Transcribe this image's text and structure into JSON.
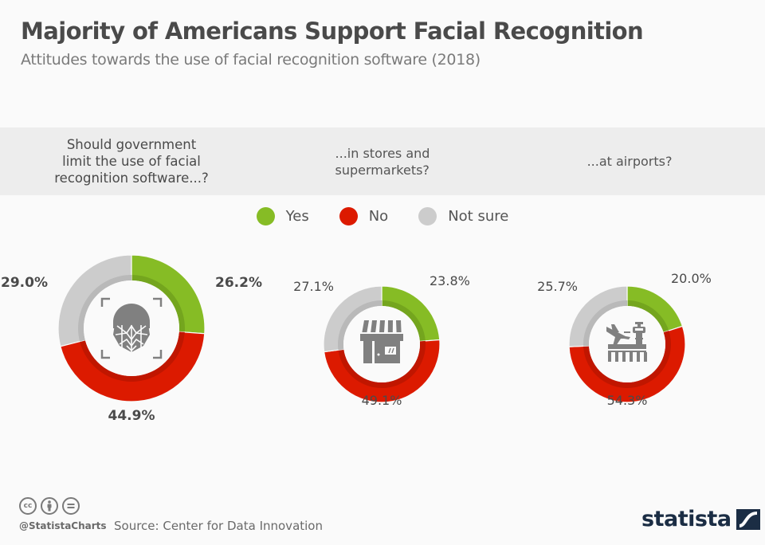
{
  "header": {
    "title": "Majority of Americans Support Facial Recognition",
    "subtitle": "Attitudes towards the use of facial recognition software (2018)"
  },
  "questions": [
    {
      "lines": [
        "Should government",
        "limit the use of facial",
        "recognition software...?"
      ]
    },
    {
      "lines": [
        "...in stores and",
        "supermarkets?"
      ]
    },
    {
      "lines": [
        "...at airports?"
      ]
    }
  ],
  "legend": [
    {
      "label": "Yes",
      "color": "#86bc25"
    },
    {
      "label": "No",
      "color": "#dc1a00"
    },
    {
      "label": "Not sure",
      "color": "#cccccc"
    }
  ],
  "chart_data": [
    {
      "type": "pie",
      "title": "Should government limit the use of facial recognition software...?",
      "categories": [
        "Yes",
        "No",
        "Not sure"
      ],
      "values": [
        26.2,
        44.9,
        29.0
      ],
      "labels": [
        "26.2%",
        "44.9%",
        "29.0%"
      ],
      "colors": [
        "#86bc25",
        "#dc1a00",
        "#cccccc"
      ],
      "icon": "face-scan-icon",
      "donut": true
    },
    {
      "type": "pie",
      "title": "...in stores and supermarkets?",
      "categories": [
        "Yes",
        "No",
        "Not sure"
      ],
      "values": [
        23.8,
        49.1,
        27.1
      ],
      "labels": [
        "23.8%",
        "49.1%",
        "27.1%"
      ],
      "colors": [
        "#86bc25",
        "#dc1a00",
        "#cccccc"
      ],
      "icon": "store-icon",
      "donut": true
    },
    {
      "type": "pie",
      "title": "...at airports?",
      "categories": [
        "Yes",
        "No",
        "Not sure"
      ],
      "values": [
        20.0,
        54.3,
        25.7
      ],
      "labels": [
        "20.0%",
        "54.3%",
        "25.7%"
      ],
      "colors": [
        "#86bc25",
        "#dc1a00",
        "#cccccc"
      ],
      "icon": "airport-icon",
      "donut": true
    }
  ],
  "footer": {
    "license_icons": [
      "cc-icon",
      "by-icon",
      "nd-icon"
    ],
    "cc_text": "cc",
    "handle": "@StatistaCharts",
    "source": "Source: Center for Data Innovation",
    "brand": "statista"
  }
}
